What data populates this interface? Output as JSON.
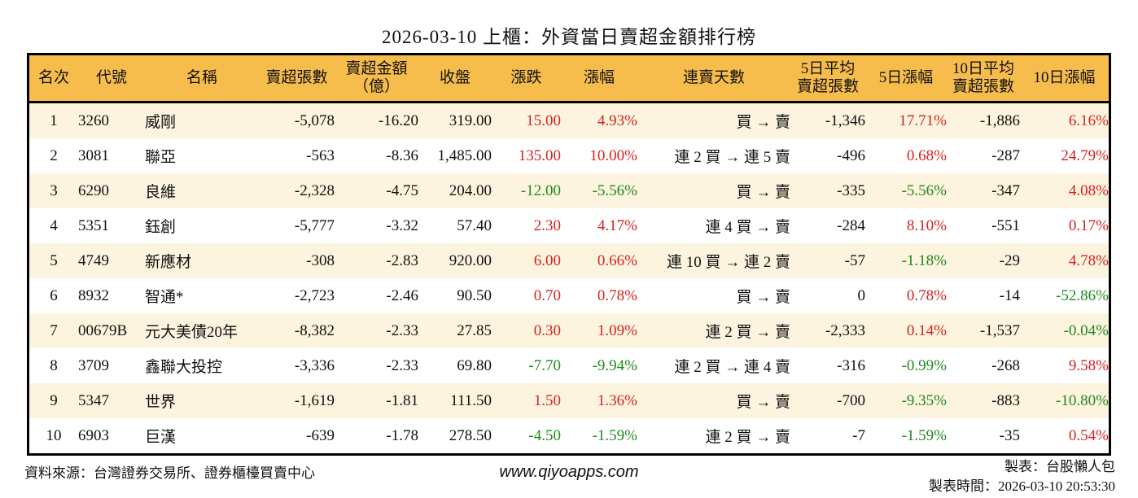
{
  "title": "2026-03-10 上櫃：外資當日賣超金額排行榜",
  "colors": {
    "header_bg": "#F6BD4D",
    "row_odd": "#FCF4DE",
    "row_even": "#FFFFFF",
    "up": "#D42222",
    "down": "#1F8A1F",
    "border": "#000000",
    "text": "#111111"
  },
  "chart_data": {
    "type": "table",
    "title": "2026-03-10 上櫃：外資當日賣超金額排行榜",
    "columns": [
      "名次",
      "代號",
      "名稱",
      "賣超張數",
      "賣超金額\n（億）",
      "收盤",
      "漲跌",
      "漲幅",
      "連賣天數",
      "5日平均\n賣超張數",
      "5日漲幅",
      "10日平均\n賣超張數",
      "10日漲幅"
    ],
    "col_keys": [
      "rank",
      "code",
      "name",
      "sell_volume",
      "sell_amount",
      "close",
      "change",
      "change_pct",
      "streak",
      "avg5",
      "pct5",
      "avg10",
      "pct10"
    ],
    "rows": [
      {
        "rank": "1",
        "code": "3260",
        "name": "威剛",
        "sell_volume": "-5,078",
        "sell_amount": "-16.20",
        "close": "319.00",
        "change": "15.00",
        "change_c": "up",
        "change_pct": "4.93%",
        "change_pct_c": "up",
        "streak": "買 → 賣",
        "avg5": "-1,346",
        "pct5": "17.71%",
        "pct5_c": "up",
        "avg10": "-1,886",
        "pct10": "6.16%",
        "pct10_c": "up"
      },
      {
        "rank": "2",
        "code": "3081",
        "name": "聯亞",
        "sell_volume": "-563",
        "sell_amount": "-8.36",
        "close": "1,485.00",
        "change": "135.00",
        "change_c": "up",
        "change_pct": "10.00%",
        "change_pct_c": "up",
        "streak": "連 2 買 → 連 5 賣",
        "avg5": "-496",
        "pct5": "0.68%",
        "pct5_c": "up",
        "avg10": "-287",
        "pct10": "24.79%",
        "pct10_c": "up"
      },
      {
        "rank": "3",
        "code": "6290",
        "name": "良維",
        "sell_volume": "-2,328",
        "sell_amount": "-4.75",
        "close": "204.00",
        "change": "-12.00",
        "change_c": "down",
        "change_pct": "-5.56%",
        "change_pct_c": "down",
        "streak": "買 → 賣",
        "avg5": "-335",
        "pct5": "-5.56%",
        "pct5_c": "down",
        "avg10": "-347",
        "pct10": "4.08%",
        "pct10_c": "up"
      },
      {
        "rank": "4",
        "code": "5351",
        "name": "鈺創",
        "sell_volume": "-5,777",
        "sell_amount": "-3.32",
        "close": "57.40",
        "change": "2.30",
        "change_c": "up",
        "change_pct": "4.17%",
        "change_pct_c": "up",
        "streak": "連 4 買 → 賣",
        "avg5": "-284",
        "pct5": "8.10%",
        "pct5_c": "up",
        "avg10": "-551",
        "pct10": "0.17%",
        "pct10_c": "up"
      },
      {
        "rank": "5",
        "code": "4749",
        "name": "新應材",
        "sell_volume": "-308",
        "sell_amount": "-2.83",
        "close": "920.00",
        "change": "6.00",
        "change_c": "up",
        "change_pct": "0.66%",
        "change_pct_c": "up",
        "streak": "連 10 買 → 連 2 賣",
        "avg5": "-57",
        "pct5": "-1.18%",
        "pct5_c": "down",
        "avg10": "-29",
        "pct10": "4.78%",
        "pct10_c": "up"
      },
      {
        "rank": "6",
        "code": "8932",
        "name": "智通*",
        "sell_volume": "-2,723",
        "sell_amount": "-2.46",
        "close": "90.50",
        "change": "0.70",
        "change_c": "up",
        "change_pct": "0.78%",
        "change_pct_c": "up",
        "streak": "買 → 賣",
        "avg5": "0",
        "pct5": "0.78%",
        "pct5_c": "up",
        "avg10": "-14",
        "pct10": "-52.86%",
        "pct10_c": "down"
      },
      {
        "rank": "7",
        "code": "00679B",
        "name": "元大美債20年",
        "sell_volume": "-8,382",
        "sell_amount": "-2.33",
        "close": "27.85",
        "change": "0.30",
        "change_c": "up",
        "change_pct": "1.09%",
        "change_pct_c": "up",
        "streak": "連 2 買 → 賣",
        "avg5": "-2,333",
        "pct5": "0.14%",
        "pct5_c": "up",
        "avg10": "-1,537",
        "pct10": "-0.04%",
        "pct10_c": "down"
      },
      {
        "rank": "8",
        "code": "3709",
        "name": "鑫聯大投控",
        "sell_volume": "-3,336",
        "sell_amount": "-2.33",
        "close": "69.80",
        "change": "-7.70",
        "change_c": "down",
        "change_pct": "-9.94%",
        "change_pct_c": "down",
        "streak": "連 2 買 → 連 4 賣",
        "avg5": "-316",
        "pct5": "-0.99%",
        "pct5_c": "down",
        "avg10": "-268",
        "pct10": "9.58%",
        "pct10_c": "up"
      },
      {
        "rank": "9",
        "code": "5347",
        "name": "世界",
        "sell_volume": "-1,619",
        "sell_amount": "-1.81",
        "close": "111.50",
        "change": "1.50",
        "change_c": "up",
        "change_pct": "1.36%",
        "change_pct_c": "up",
        "streak": "買 → 賣",
        "avg5": "-700",
        "pct5": "-9.35%",
        "pct5_c": "down",
        "avg10": "-883",
        "pct10": "-10.80%",
        "pct10_c": "down"
      },
      {
        "rank": "10",
        "code": "6903",
        "name": "巨漢",
        "sell_volume": "-639",
        "sell_amount": "-1.78",
        "close": "278.50",
        "change": "-4.50",
        "change_c": "down",
        "change_pct": "-1.59%",
        "change_pct_c": "down",
        "streak": "連 2 買 → 賣",
        "avg5": "-7",
        "pct5": "-1.59%",
        "pct5_c": "down",
        "avg10": "-35",
        "pct10": "0.54%",
        "pct10_c": "up"
      }
    ]
  },
  "footer": {
    "source": "資料來源：台灣證券交易所、證券櫃檯買賣中心",
    "url": "www.qiyoapps.com",
    "maker": "製表：台股懶人包",
    "made_time": "製表時間：2026-03-10 20:53:30"
  }
}
